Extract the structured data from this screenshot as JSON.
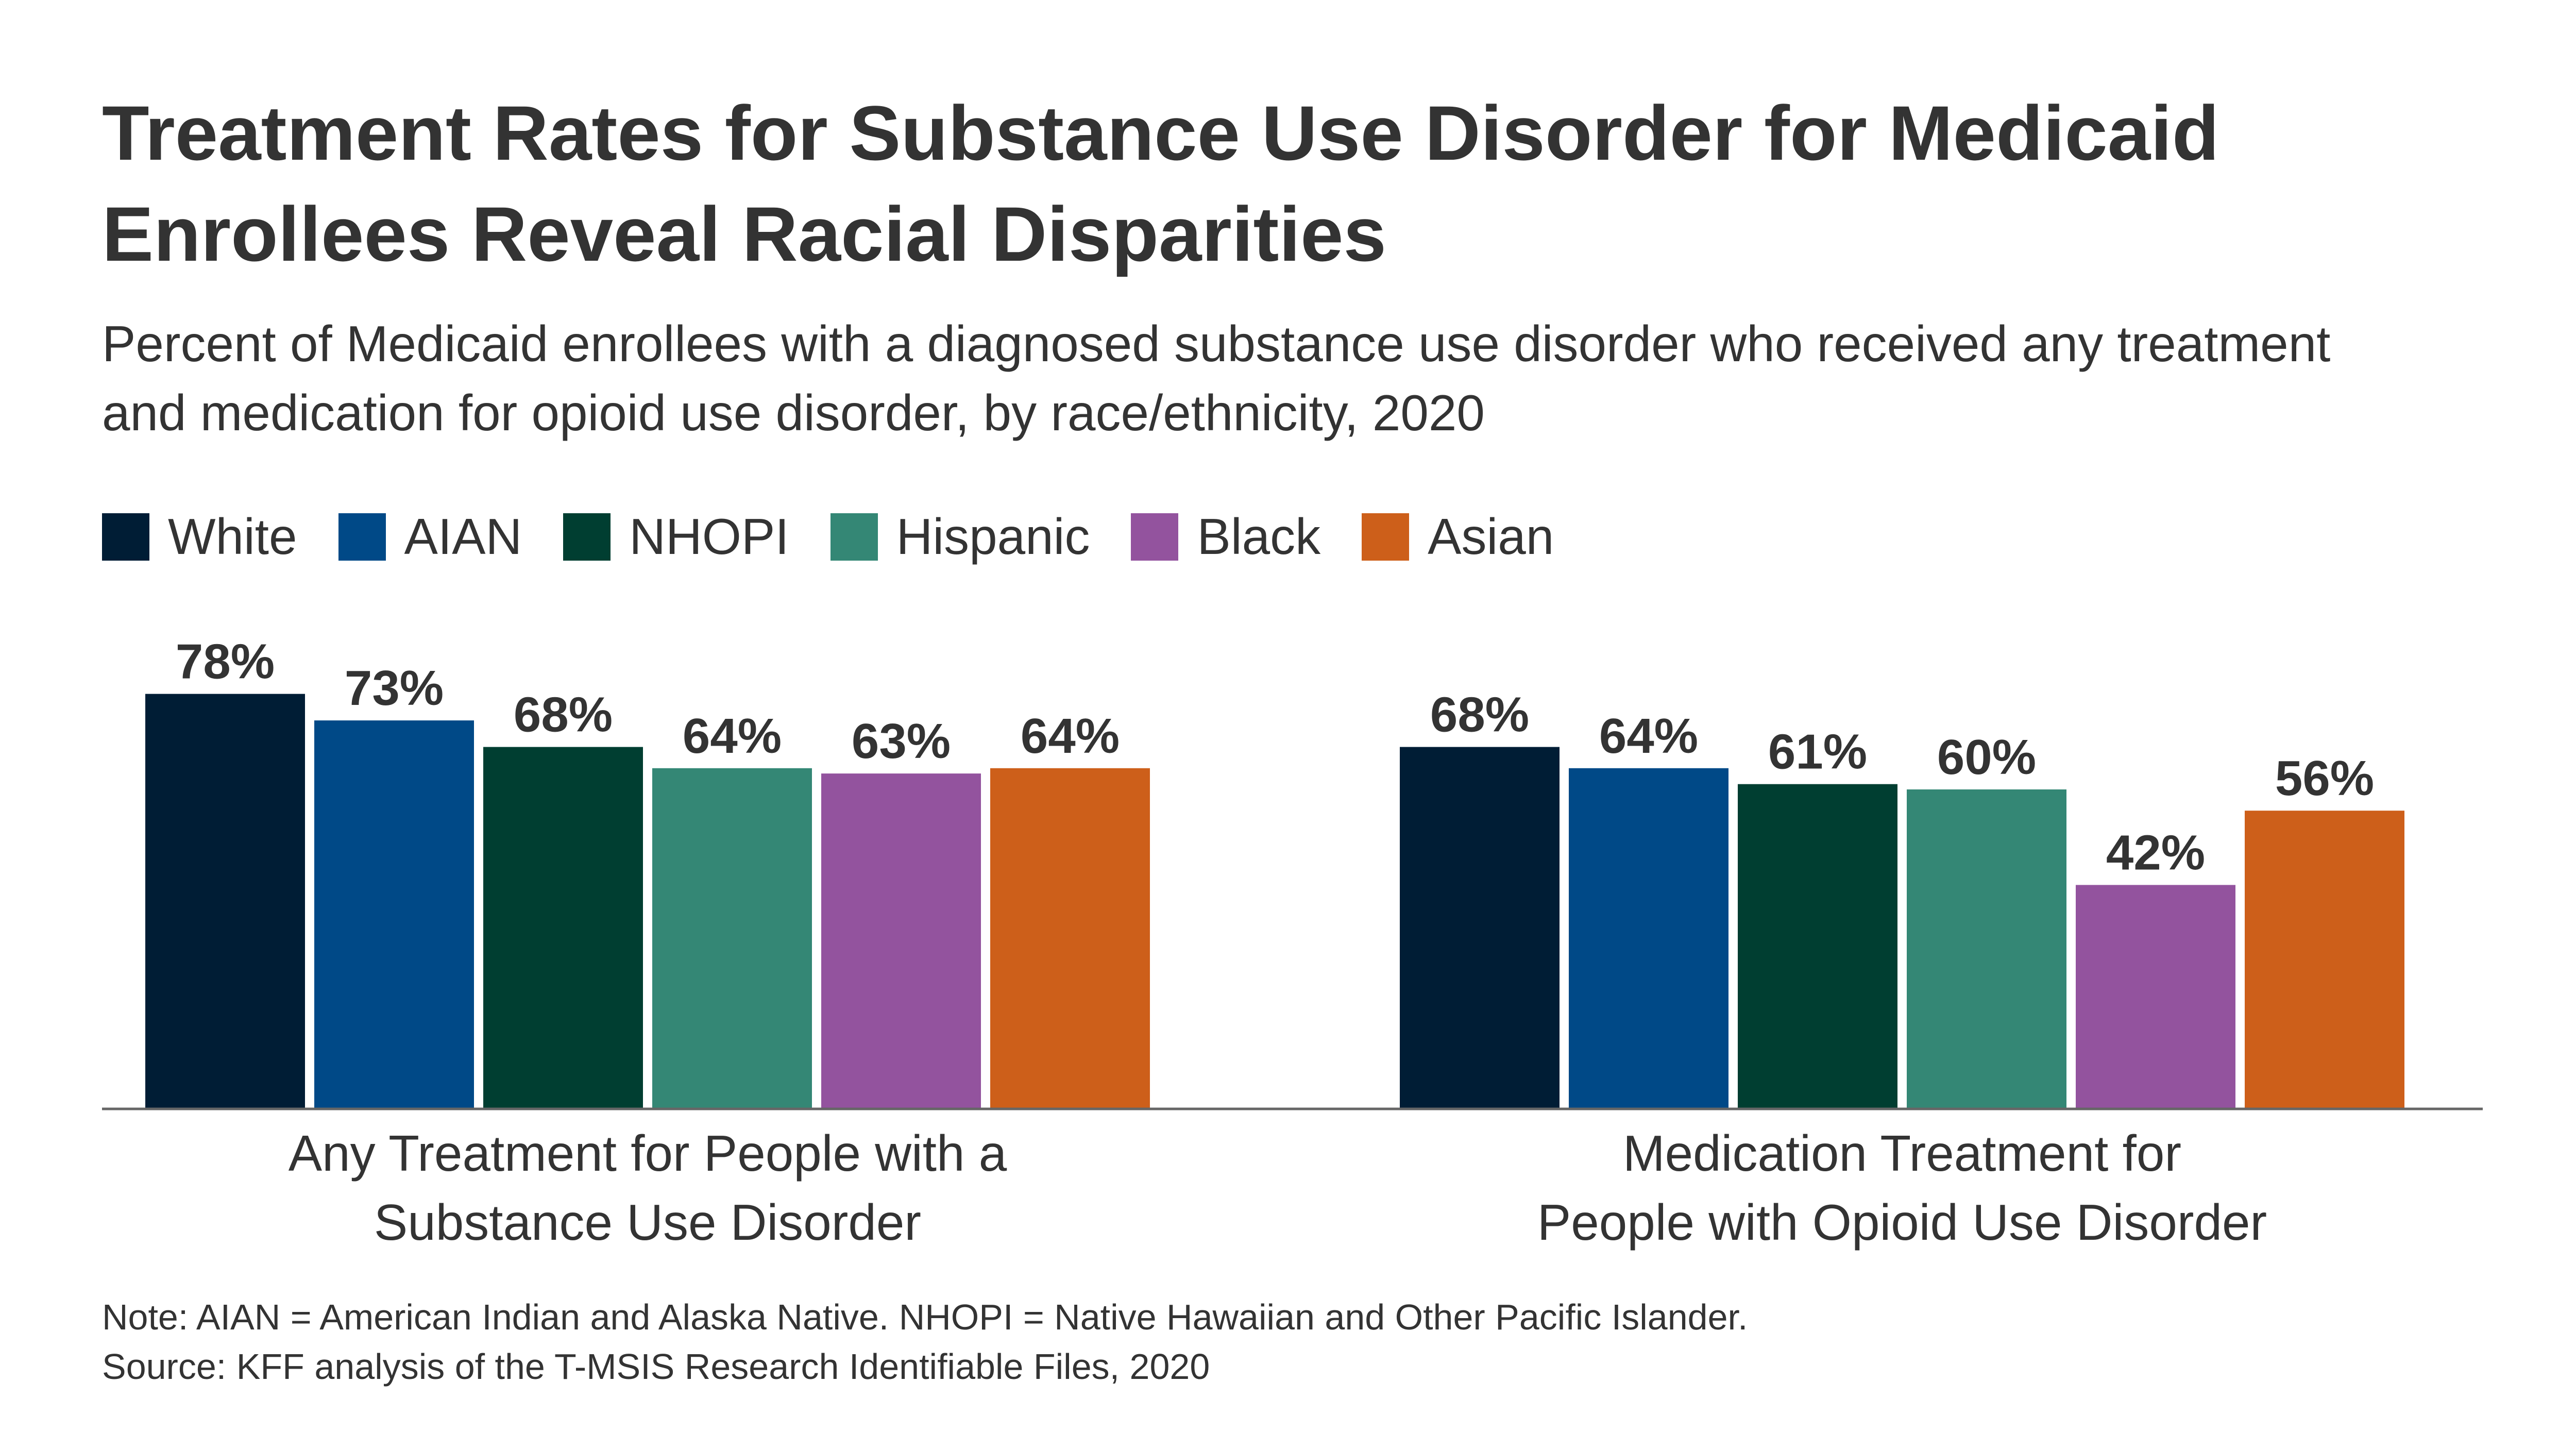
{
  "title": "Treatment Rates for Substance Use Disorder for Medicaid Enrollees Reveal Racial Disparities",
  "subtitle": "Percent of Medicaid enrollees with a diagnosed substance use disorder who received any treatment and medication for opioid use disorder, by race/ethnicity, 2020",
  "note": "Note: AIAN = American Indian and Alaska Native. NHOPI = Native Hawaiian and Other Pacific Islander.",
  "source": "Source: KFF analysis of the T-MSIS Research Identifiable Files, 2020",
  "chart_data": {
    "type": "bar",
    "title": "Treatment Rates for Substance Use Disorder for Medicaid Enrollees Reveal Racial Disparities",
    "categories": [
      [
        "Any Treatment for People with a",
        "Substance Use Disorder"
      ],
      [
        "Medication Treatment for",
        "People with Opioid Use Disorder"
      ]
    ],
    "series": [
      {
        "name": "White",
        "color": "#001d35",
        "values": [
          78,
          68
        ]
      },
      {
        "name": "AIAN",
        "color": "#004987",
        "values": [
          73,
          64
        ]
      },
      {
        "name": "NHOPI",
        "color": "#003e31",
        "values": [
          68,
          61
        ]
      },
      {
        "name": "Hispanic",
        "color": "#348775",
        "values": [
          64,
          60
        ]
      },
      {
        "name": "Black",
        "color": "#93539e",
        "values": [
          63,
          42
        ]
      },
      {
        "name": "Asian",
        "color": "#cd5f1a",
        "values": [
          64,
          56
        ]
      }
    ],
    "ylim": [
      0,
      100
    ],
    "value_format": "%",
    "grid": false,
    "legend_position": "top-left",
    "xlabel": "",
    "ylabel": ""
  }
}
